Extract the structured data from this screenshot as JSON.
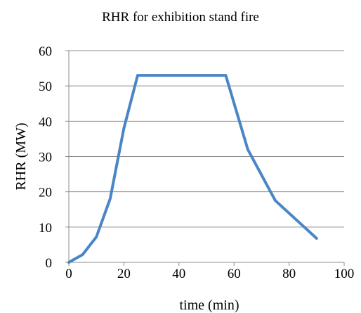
{
  "chart_data": {
    "type": "line",
    "title": "RHR for exhibition stand fire",
    "xlabel": "time (min)",
    "ylabel": "RHR (MW)",
    "xlim": [
      0,
      100
    ],
    "ylim": [
      0,
      60
    ],
    "xticks": [
      0,
      20,
      40,
      60,
      80,
      100
    ],
    "yticks": [
      0,
      10,
      20,
      30,
      40,
      50,
      60
    ],
    "grid": "horizontal",
    "legend": "none",
    "series": [
      {
        "color": "#4a86c5",
        "x": [
          0,
          5,
          10,
          15,
          20,
          25,
          57,
          65,
          75,
          90
        ],
        "y": [
          0,
          2.2,
          7.2,
          18,
          38,
          53,
          53,
          32,
          17.5,
          6.8
        ]
      }
    ]
  }
}
